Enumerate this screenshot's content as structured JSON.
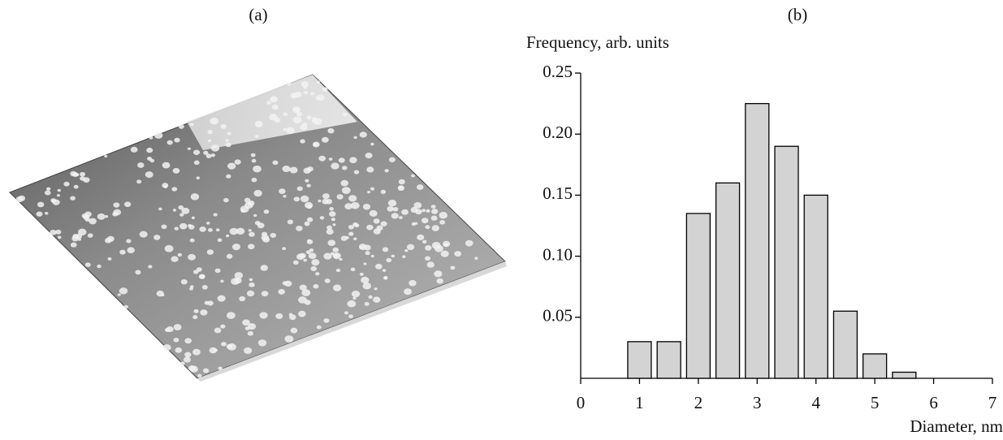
{
  "image_panel": {
    "label": "(a)"
  },
  "chart_data": {
    "type": "bar",
    "title": "(b)",
    "y_label": "Frequency, arb. units",
    "x_label": "Diameter, nm",
    "x": [
      1,
      1.5,
      2,
      2.5,
      3,
      3.5,
      4,
      4.5,
      5,
      5.5
    ],
    "values": [
      0.03,
      0.03,
      0.135,
      0.16,
      0.225,
      0.19,
      0.15,
      0.055,
      0.02,
      0.005
    ],
    "color": "#d3d3d3",
    "xlim": [
      0,
      7
    ],
    "xticks": [
      0,
      1,
      2,
      3,
      4,
      5,
      6,
      7
    ],
    "ylim": [
      0,
      0.25
    ],
    "yticks": [
      0.05,
      {
        "value": 0.1,
        "label": "0.10"
      },
      0.15,
      {
        "value": 0.2,
        "label": "0.20"
      },
      0.25
    ],
    "grid": false
  }
}
